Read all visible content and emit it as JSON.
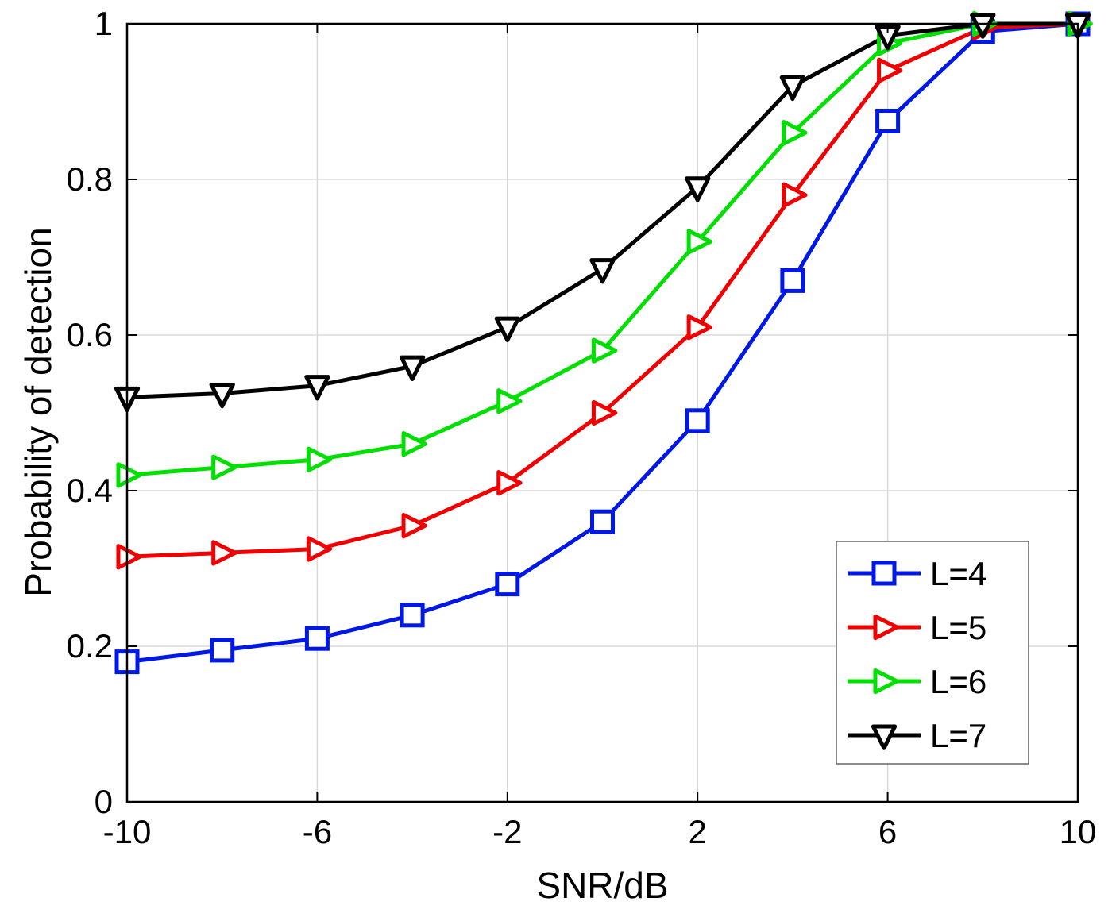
{
  "chart_data": {
    "type": "line",
    "title": "",
    "xlabel": "SNR/dB",
    "ylabel": "Probability of detection",
    "xlim": [
      -10,
      10
    ],
    "ylim": [
      0,
      1
    ],
    "xticks": [
      -10,
      -6,
      -2,
      2,
      6,
      10
    ],
    "xtick_labels": [
      "-10",
      "-6",
      "-2",
      "2",
      "6",
      "10"
    ],
    "yticks": [
      0,
      0.2,
      0.4,
      0.6,
      0.8,
      1
    ],
    "ytick_labels": [
      "0",
      "0.2",
      "0.4",
      "0.6",
      "0.8",
      "1"
    ],
    "grid": true,
    "legend_position": "lower right",
    "grid_color": "#d9d9d9",
    "axis_color": "#000000",
    "x": [
      -10,
      -8,
      -6,
      -4,
      -2,
      0,
      2,
      4,
      6,
      8,
      10
    ],
    "series": [
      {
        "name": "L=4",
        "color": "#0018e6",
        "marker": "square",
        "values": [
          0.18,
          0.195,
          0.21,
          0.24,
          0.28,
          0.36,
          0.49,
          0.67,
          0.875,
          0.99,
          1.0
        ]
      },
      {
        "name": "L=5",
        "color": "#f00000",
        "marker": "triangle-right",
        "values": [
          0.315,
          0.32,
          0.325,
          0.355,
          0.41,
          0.5,
          0.61,
          0.78,
          0.94,
          0.995,
          1.0
        ]
      },
      {
        "name": "L=6",
        "color": "#00e000",
        "marker": "triangle-right",
        "values": [
          0.42,
          0.43,
          0.44,
          0.46,
          0.515,
          0.58,
          0.72,
          0.86,
          0.975,
          1.0,
          1.0
        ]
      },
      {
        "name": "L=7",
        "color": "#000000",
        "marker": "triangle-down",
        "values": [
          0.52,
          0.525,
          0.535,
          0.56,
          0.61,
          0.685,
          0.79,
          0.92,
          0.985,
          1.0,
          1.0
        ]
      }
    ]
  }
}
